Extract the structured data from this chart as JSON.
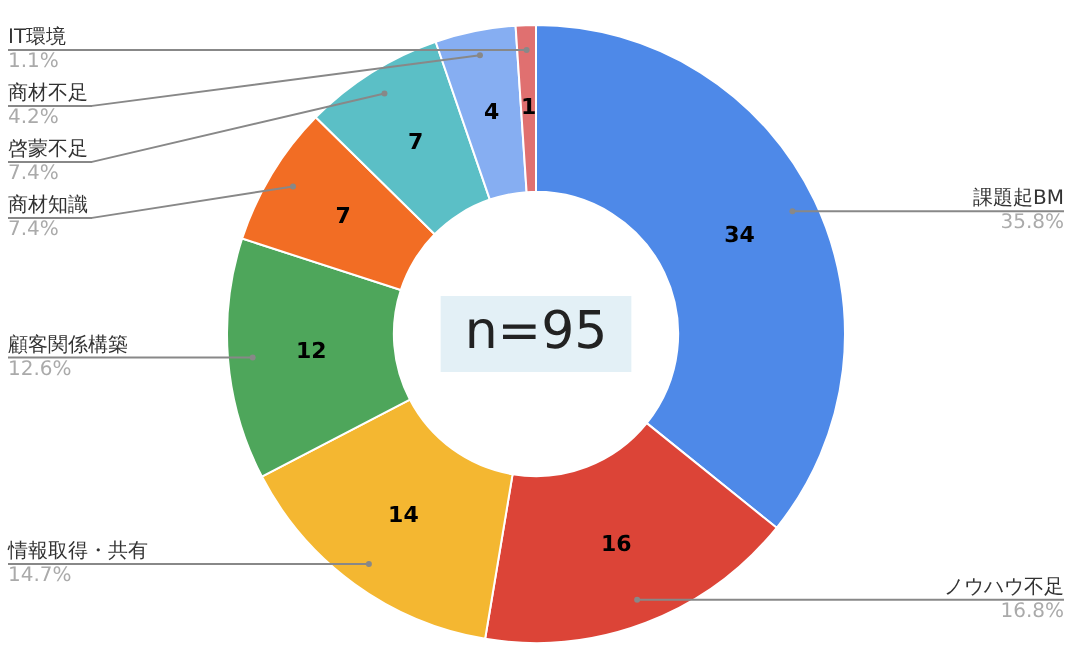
{
  "chart_data": {
    "type": "donut",
    "categories": [
      "課題起BM",
      "ノウハウ不足",
      "情報取得・共有",
      "顧客関係構築",
      "商材知識",
      "啓蒙不足",
      "商材不足",
      "IT環境"
    ],
    "values": [
      34,
      16,
      14,
      12,
      7,
      7,
      4,
      1
    ],
    "colors": [
      "#4e89e8",
      "#dc4437",
      "#f4b731",
      "#4ea65b",
      "#f26d24",
      "#5bbfc6",
      "#86aef2",
      "#e07070"
    ],
    "data_labels": true,
    "legend": false,
    "annotations": [
      "n=95",
      {
        "text": "35.8%",
        "x": "課題起BM"
      },
      {
        "text": "16.8%",
        "x": "ノウハウ不足"
      },
      {
        "text": "14.7%",
        "x": "情報取得・共有"
      },
      {
        "text": "12.6%",
        "x": "顧客関係構築"
      },
      {
        "text": "7.4%",
        "x": "商材知識"
      },
      {
        "text": "7.4%",
        "x": "啓蒙不足"
      },
      {
        "text": "4.2%",
        "x": "商材不足"
      },
      {
        "text": "1.1%",
        "x": "IT環境"
      }
    ]
  }
}
